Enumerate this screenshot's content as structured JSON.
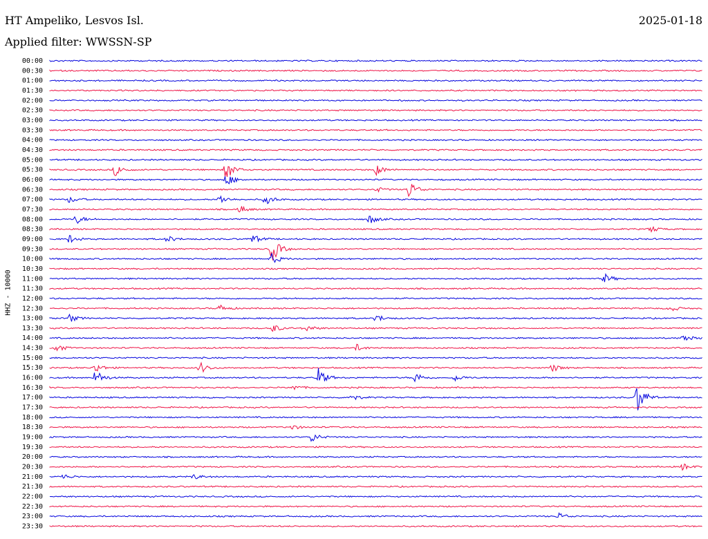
{
  "header": {
    "station": "HT Ampeliko, Lesvos Isl.",
    "date": "2025-01-18",
    "filter": "Applied filter: WWSSN-SP"
  },
  "chart_data": {
    "type": "line",
    "ylabel": "HHZ - 10000",
    "colors": [
      "#0000dd",
      "#ee1144"
    ],
    "rows": [
      "00:00",
      "00:30",
      "01:00",
      "01:30",
      "02:00",
      "02:30",
      "03:00",
      "03:30",
      "04:00",
      "04:30",
      "05:00",
      "05:30",
      "06:00",
      "06:30",
      "07:00",
      "07:30",
      "08:00",
      "08:30",
      "09:00",
      "09:30",
      "10:00",
      "10:30",
      "11:00",
      "11:30",
      "12:00",
      "12:30",
      "13:00",
      "13:30",
      "14:00",
      "14:30",
      "15:00",
      "15:30",
      "16:00",
      "16:30",
      "17:00",
      "17:30",
      "18:00",
      "18:30",
      "19:00",
      "19:30",
      "20:00",
      "20:30",
      "21:00",
      "21:30",
      "22:00",
      "22:30",
      "23:00",
      "23:30"
    ],
    "events": [
      {
        "row": 11,
        "x": 0.1,
        "amp": 9
      },
      {
        "row": 11,
        "x": 0.27,
        "amp": 16
      },
      {
        "row": 11,
        "x": 0.5,
        "amp": 8
      },
      {
        "row": 12,
        "x": 0.27,
        "amp": 10
      },
      {
        "row": 13,
        "x": 0.55,
        "amp": 14
      },
      {
        "row": 13,
        "x": 0.5,
        "amp": 4
      },
      {
        "row": 14,
        "x": 0.03,
        "amp": 5
      },
      {
        "row": 14,
        "x": 0.26,
        "amp": 7
      },
      {
        "row": 14,
        "x": 0.33,
        "amp": 8
      },
      {
        "row": 15,
        "x": 0.29,
        "amp": 6
      },
      {
        "row": 16,
        "x": 0.04,
        "amp": 7
      },
      {
        "row": 16,
        "x": 0.49,
        "amp": 7
      },
      {
        "row": 17,
        "x": 0.92,
        "amp": 5
      },
      {
        "row": 18,
        "x": 0.03,
        "amp": 6
      },
      {
        "row": 18,
        "x": 0.31,
        "amp": 7
      },
      {
        "row": 18,
        "x": 0.18,
        "amp": 5
      },
      {
        "row": 19,
        "x": 0.34,
        "amp": 20
      },
      {
        "row": 20,
        "x": 0.34,
        "amp": 8
      },
      {
        "row": 22,
        "x": 0.85,
        "amp": 7
      },
      {
        "row": 25,
        "x": 0.95,
        "amp": 5
      },
      {
        "row": 25,
        "x": 0.26,
        "amp": 5
      },
      {
        "row": 26,
        "x": 0.03,
        "amp": 6
      },
      {
        "row": 26,
        "x": 0.5,
        "amp": 6
      },
      {
        "row": 27,
        "x": 0.34,
        "amp": 7
      },
      {
        "row": 27,
        "x": 0.39,
        "amp": 6
      },
      {
        "row": 28,
        "x": 0.97,
        "amp": 6
      },
      {
        "row": 29,
        "x": 0.01,
        "amp": 6
      },
      {
        "row": 29,
        "x": 0.47,
        "amp": 5
      },
      {
        "row": 31,
        "x": 0.07,
        "amp": 7
      },
      {
        "row": 31,
        "x": 0.23,
        "amp": 9
      },
      {
        "row": 31,
        "x": 0.77,
        "amp": 6
      },
      {
        "row": 32,
        "x": 0.07,
        "amp": 12
      },
      {
        "row": 32,
        "x": 0.41,
        "amp": 16
      },
      {
        "row": 32,
        "x": 0.56,
        "amp": 8
      },
      {
        "row": 32,
        "x": 0.62,
        "amp": 5
      },
      {
        "row": 33,
        "x": 0.37,
        "amp": 5
      },
      {
        "row": 34,
        "x": 0.46,
        "amp": 6
      },
      {
        "row": 34,
        "x": 0.9,
        "amp": 24
      },
      {
        "row": 37,
        "x": 0.37,
        "amp": 4
      },
      {
        "row": 38,
        "x": 0.4,
        "amp": 8
      },
      {
        "row": 41,
        "x": 0.97,
        "amp": 5
      },
      {
        "row": 42,
        "x": 0.02,
        "amp": 4
      },
      {
        "row": 42,
        "x": 0.22,
        "amp": 4
      },
      {
        "row": 46,
        "x": 0.78,
        "amp": 5
      }
    ]
  }
}
